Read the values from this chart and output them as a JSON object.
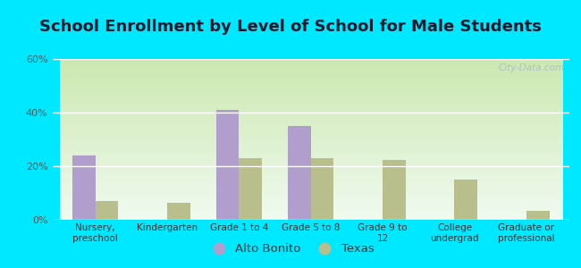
{
  "title": "School Enrollment by Level of School for Male Students",
  "categories": [
    "Nursery,\npreschool",
    "Kindergarten",
    "Grade 1 to 4",
    "Grade 5 to 8",
    "Grade 9 to\n12",
    "College\nundergrad",
    "Graduate or\nprofessional"
  ],
  "alto_bonito": [
    24,
    0,
    41,
    35,
    0,
    0,
    0
  ],
  "texas": [
    7,
    6.5,
    23,
    23,
    22.5,
    15,
    3.5
  ],
  "bar_color_alto": "#b09fcc",
  "bar_color_texas": "#b8be8c",
  "legend_alto": "Alto Bonito",
  "legend_texas": "Texas",
  "ylim": [
    0,
    60
  ],
  "yticks": [
    0,
    20,
    40,
    60
  ],
  "ytick_labels": [
    "0%",
    "20%",
    "40%",
    "60%"
  ],
  "background_outer": "#00e8ff",
  "grad_top": "#cce8b0",
  "grad_bottom": "#f0faf0",
  "title_fontsize": 13,
  "bar_width": 0.32,
  "watermark": "City-Data.com"
}
